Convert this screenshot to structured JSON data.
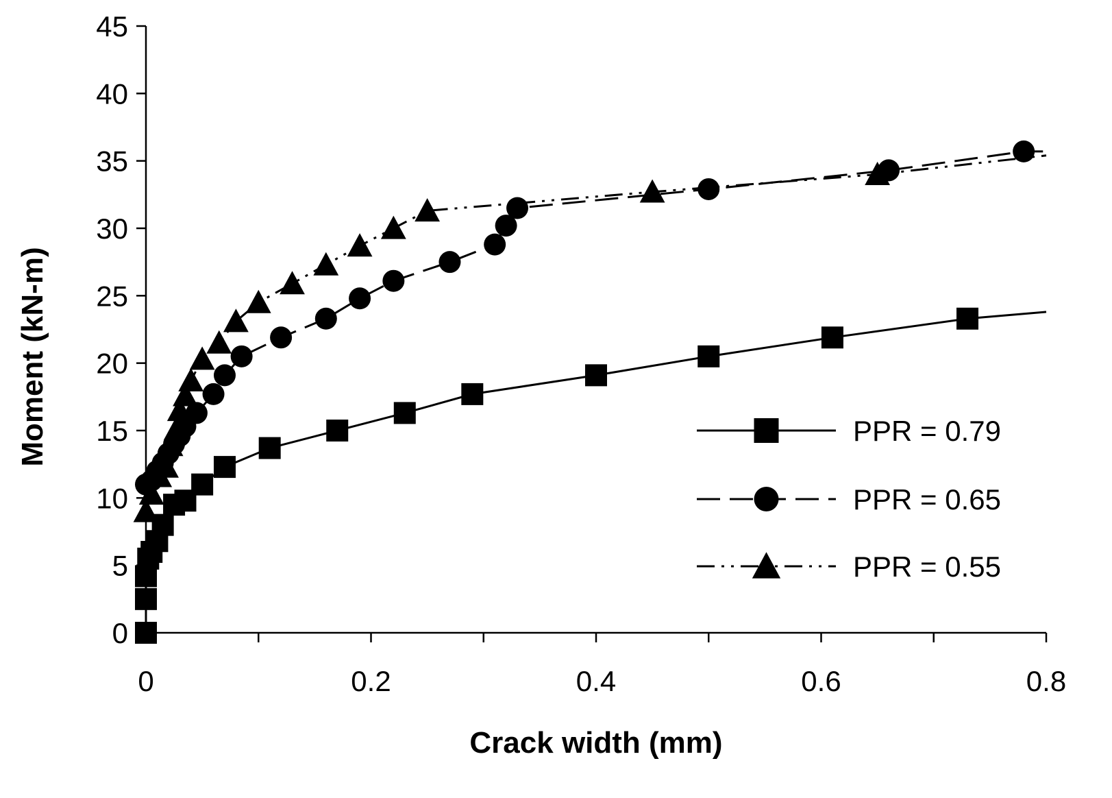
{
  "chart_data": {
    "type": "line",
    "title": "",
    "xlabel": "Crack width (mm)",
    "ylabel": "Moment (kN-m)",
    "xlim": [
      0,
      0.8
    ],
    "ylim": [
      0,
      45
    ],
    "xticks": [
      0,
      0.1,
      0.2,
      0.3,
      0.4,
      0.5,
      0.6,
      0.7,
      0.8
    ],
    "xtick_labels": [
      "0",
      "",
      "0.2",
      "",
      "0.4",
      "",
      "0.6",
      "",
      "0.8"
    ],
    "yticks": [
      0,
      5,
      10,
      15,
      20,
      25,
      30,
      35,
      40,
      45
    ],
    "ytick_labels": [
      "0",
      "5",
      "10",
      "15",
      "20",
      "25",
      "30",
      "35",
      "40",
      "45"
    ],
    "grid": false,
    "legend_position": "lower-right",
    "series": [
      {
        "name": "PPR = 0.79",
        "marker": "square",
        "line_style": "solid",
        "color": "#000000",
        "x": [
          0,
          0,
          0,
          0.002,
          0.005,
          0.01,
          0.015,
          0.025,
          0.035,
          0.05,
          0.07,
          0.11,
          0.17,
          0.23,
          0.29,
          0.4,
          0.5,
          0.61,
          0.73
        ],
        "y": [
          0,
          2.5,
          4.2,
          5.5,
          6.0,
          6.8,
          8.0,
          9.5,
          9.8,
          11.0,
          12.3,
          13.7,
          15.0,
          16.3,
          17.7,
          19.1,
          20.5,
          21.9,
          23.3
        ],
        "end_point": [
          0.8,
          23.8
        ]
      },
      {
        "name": "PPR = 0.65",
        "marker": "circle",
        "line_style": "dashed",
        "color": "#000000",
        "x": [
          0,
          0.005,
          0.01,
          0.015,
          0.02,
          0.025,
          0.03,
          0.035,
          0.045,
          0.06,
          0.07,
          0.085,
          0.12,
          0.16,
          0.19,
          0.22,
          0.27,
          0.31,
          0.32,
          0.33,
          0.5,
          0.66,
          0.78
        ],
        "y": [
          11.0,
          11.3,
          12.0,
          12.6,
          13.3,
          14.0,
          14.6,
          15.3,
          16.3,
          17.7,
          19.1,
          20.5,
          21.9,
          23.3,
          24.8,
          26.1,
          27.5,
          28.8,
          30.2,
          31.5,
          32.9,
          34.3,
          35.7
        ],
        "end_point": [
          0.8,
          35.7
        ]
      },
      {
        "name": "PPR = 0.55",
        "marker": "triangle",
        "line_style": "dash-dot-dot",
        "color": "#000000",
        "x": [
          0,
          0.005,
          0.012,
          0.018,
          0.022,
          0.027,
          0.03,
          0.035,
          0.04,
          0.05,
          0.065,
          0.08,
          0.1,
          0.13,
          0.16,
          0.19,
          0.22,
          0.25,
          0.45,
          0.65
        ],
        "y": [
          9.0,
          10.3,
          11.6,
          12.3,
          13.9,
          15.1,
          16.5,
          17.6,
          18.7,
          20.3,
          21.5,
          23.1,
          24.5,
          25.9,
          27.3,
          28.7,
          30.0,
          31.3,
          32.7,
          34.0
        ],
        "end_point": [
          0.8,
          35.4
        ]
      }
    ]
  }
}
